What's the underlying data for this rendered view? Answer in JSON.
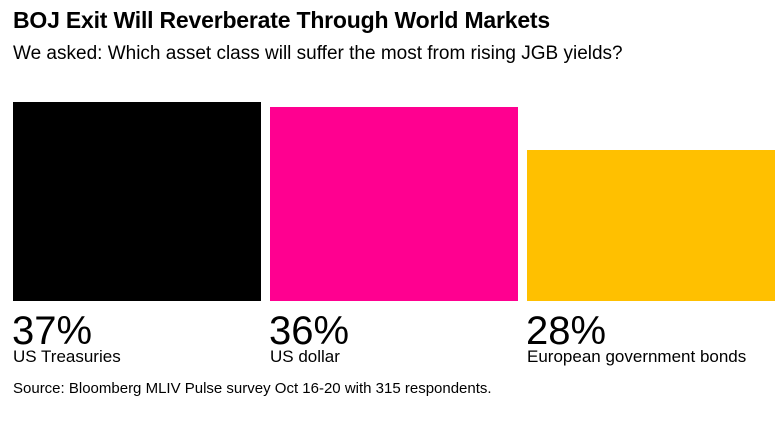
{
  "chart_data": {
    "type": "bar",
    "title": "BOJ Exit Will Reverberate Through World Markets",
    "subtitle": "We asked: Which asset class will suffer the most from rising JGB yields?",
    "categories": [
      "US Treasuries",
      "US dollar",
      "European government bonds"
    ],
    "values": [
      37,
      36,
      28
    ],
    "value_labels": [
      "37%",
      "36%",
      "28%"
    ],
    "colors": [
      "#000000",
      "#ff0090",
      "#ffc000"
    ],
    "ylim": [
      0,
      37
    ],
    "grid": false,
    "legend": "none",
    "source": "Source: Bloomberg MLIV Pulse survey Oct 16-20 with 315 respondents."
  }
}
